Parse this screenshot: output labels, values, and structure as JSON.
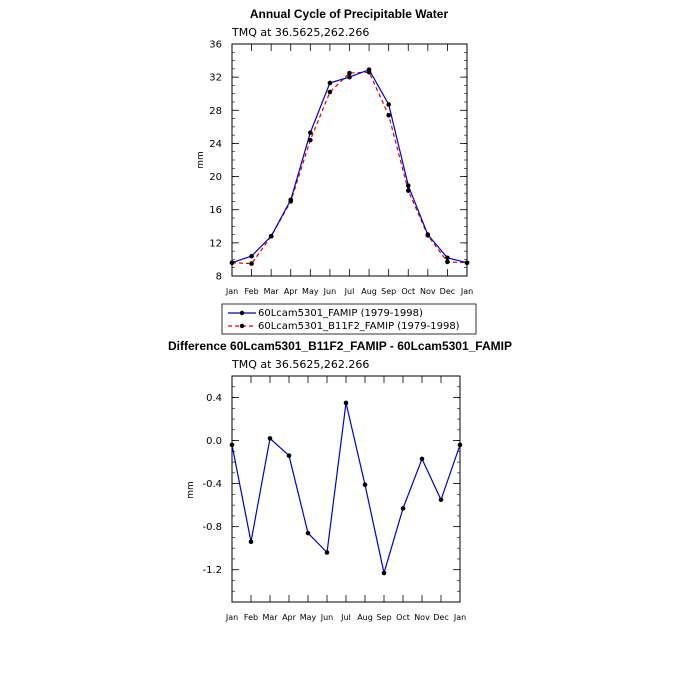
{
  "chart_data": [
    {
      "type": "line",
      "title": "Annual Cycle of Precipitable Water",
      "subtitle": "TMQ at 36.5625,262.266",
      "ylabel": "mm",
      "xlabel": "",
      "ylim": [
        8,
        36
      ],
      "yticks": [
        "8",
        "12",
        "16",
        "20",
        "24",
        "28",
        "32",
        "36"
      ],
      "categories": [
        "Jan",
        "Feb",
        "Mar",
        "Apr",
        "May",
        "Jun",
        "Jul",
        "Aug",
        "Sep",
        "Oct",
        "Nov",
        "Dec",
        "Jan"
      ],
      "legend": "bottom",
      "series": [
        {
          "name": "60Lcam5301_FAMIP (1979-1998)",
          "color": "#0000cc",
          "dash": "solid",
          "values": [
            9.6,
            10.4,
            12.8,
            17.2,
            25.3,
            31.3,
            32.0,
            32.9,
            28.7,
            18.9,
            13.0,
            10.2,
            9.6
          ]
        },
        {
          "name": "60Lcam5301_B11F2_FAMIP (1979-1998)",
          "color": "#dd0000",
          "dash": "dashed",
          "values": [
            9.6,
            9.5,
            12.8,
            17.0,
            24.4,
            30.2,
            32.5,
            32.6,
            27.4,
            18.3,
            12.9,
            9.7,
            9.6
          ]
        }
      ]
    },
    {
      "type": "line",
      "title": "Difference 60Lcam5301_B11F2_FAMIP - 60Lcam5301_FAMIP",
      "subtitle": "TMQ at 36.5625,262.266",
      "ylabel": "mm",
      "xlabel": "",
      "ylim": [
        -1.5,
        0.6
      ],
      "yticks": [
        "-1.2",
        "-0.8",
        "-0.4",
        "0.0",
        "0.4"
      ],
      "categories": [
        "Jan",
        "Feb",
        "Mar",
        "Apr",
        "May",
        "Jun",
        "Jul",
        "Aug",
        "Sep",
        "Oct",
        "Nov",
        "Dec",
        "Jan"
      ],
      "series": [
        {
          "color": "#0000cc",
          "values": [
            -0.04,
            -0.94,
            0.02,
            -0.14,
            -0.86,
            -1.04,
            0.35,
            -0.41,
            -1.23,
            -0.63,
            -0.17,
            -0.55,
            -0.04
          ]
        }
      ]
    }
  ]
}
